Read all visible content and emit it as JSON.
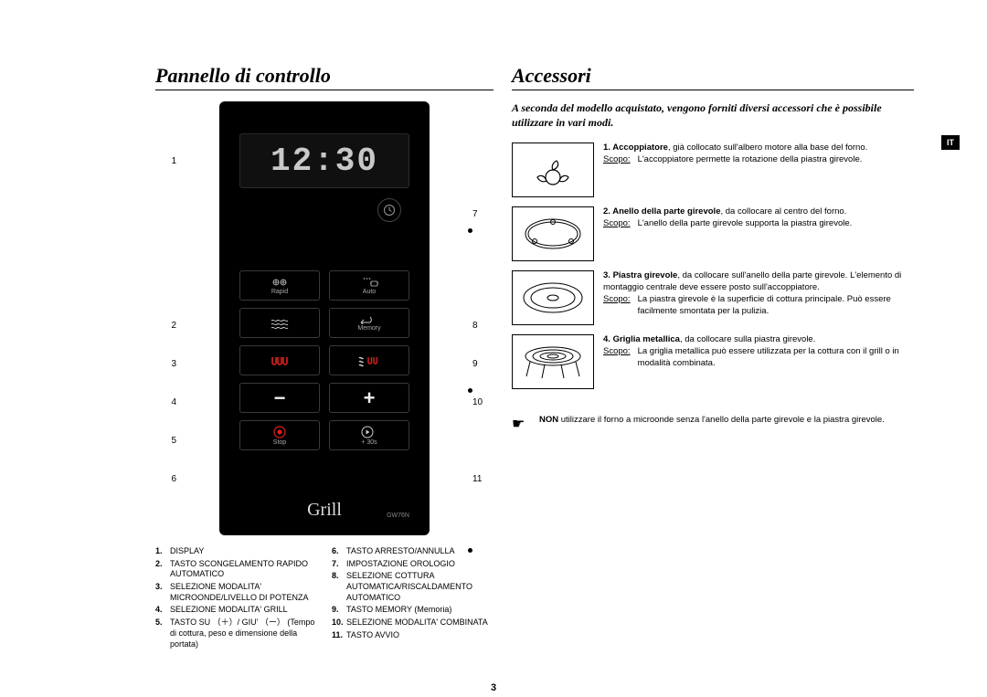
{
  "page_number": "3",
  "lang_tab": "IT",
  "left": {
    "title": "Pannello di controllo",
    "display_time": "12:30",
    "brand": "Grill",
    "model": "GW76N",
    "buttons": {
      "rapid_label": "Rapid",
      "auto_label": "Auto",
      "memory_label": "Memory",
      "stop_label": "Stop",
      "thirty_label": "+ 30s"
    },
    "callouts_left": [
      "1",
      "2",
      "3",
      "4",
      "5",
      "6"
    ],
    "callouts_right": [
      "7",
      "8",
      "9",
      "10",
      "11"
    ],
    "legend_left": [
      {
        "n": "1.",
        "t": "DISPLAY"
      },
      {
        "n": "2.",
        "t": "TASTO SCONGELAMENTO RAPIDO AUTOMATICO"
      },
      {
        "n": "3.",
        "t": "SELEZIONE MODALITA' MICROONDE/LIVELLO DI POTENZA"
      },
      {
        "n": "4.",
        "t": "SELEZIONE MODALITA' GRILL"
      },
      {
        "n": "5.",
        "t": "TASTO SU （＋）/ GIU' （ー） (Tempo di cottura, peso e dimensione della portata)"
      }
    ],
    "legend_right": [
      {
        "n": "6.",
        "t": "TASTO ARRESTO/ANNULLA"
      },
      {
        "n": "7.",
        "t": "IMPOSTAZIONE OROLOGIO"
      },
      {
        "n": "8.",
        "t": "SELEZIONE COTTURA AUTOMATICA/RISCALDAMENTO AUTOMATICO"
      },
      {
        "n": "9.",
        "t": "TASTO MEMORY (Memoria)"
      },
      {
        "n": "10.",
        "t": "SELEZIONE MODALITA' COMBINATA"
      },
      {
        "n": "11.",
        "t": "TASTO AVVIO"
      }
    ]
  },
  "right": {
    "title": "Accessori",
    "intro": "A seconda del modello acquistato, vengono forniti diversi accessori che è possibile utilizzare in vari modi.",
    "scopo_label": "Scopo:",
    "accessories": [
      {
        "n": "1.",
        "name": "Accoppiatore",
        "desc": ", già collocato sull'albero motore alla base del forno.",
        "scopo": "L'accoppiatore permette la rotazione della piastra girevole."
      },
      {
        "n": "2.",
        "name": "Anello della parte girevole",
        "desc": ", da collocare al centro del forno.",
        "scopo": "L'anello della parte girevole supporta la piastra girevole."
      },
      {
        "n": "3.",
        "name": "Piastra girevole",
        "desc": ", da collocare sull'anello della parte girevole. L'elemento di montaggio centrale deve essere posto sull'accoppiatore.",
        "scopo": "La piastra girevole è la superficie di cottura principale. Può essere facilmente smontata per la pulizia."
      },
      {
        "n": "4.",
        "name": "Griglia metallica",
        "desc": ", da collocare sulla piastra girevole.",
        "scopo": "La griglia metallica può essere utilizzata per la cottura con il grill o in modalità combinata."
      }
    ],
    "note_bold": "NON",
    "note_text": " utilizzare il forno a microonde senza l'anello della parte girevole e la piastra girevole."
  }
}
